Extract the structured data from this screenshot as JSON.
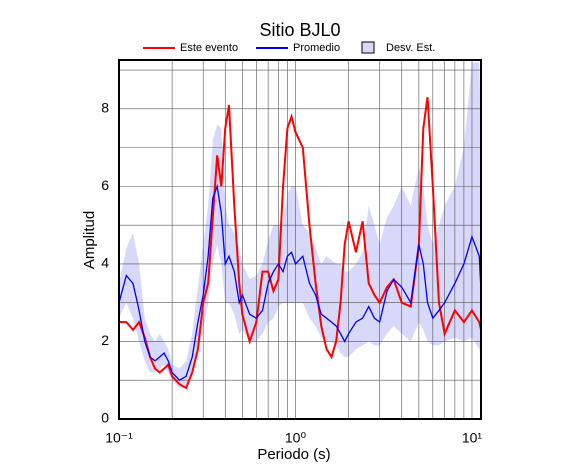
{
  "chart_data": {
    "type": "line",
    "title": "Sitio BJL0",
    "xlabel": "Periodo (s)",
    "ylabel": "Amplitud",
    "xscale": "log",
    "grid": true,
    "xlim": [
      0.1,
      11.25
    ],
    "ylim": [
      0,
      9.26
    ],
    "xticks": [
      {
        "value": 0.1,
        "label": "10⁻¹"
      },
      {
        "value": 1,
        "label": "10⁰"
      },
      {
        "value": 10,
        "label": "10¹"
      }
    ],
    "xgrid": [
      0.2,
      0.3,
      0.4,
      0.5,
      0.6,
      0.7,
      0.8,
      0.9,
      2,
      3,
      4,
      5,
      6,
      7,
      8,
      9
    ],
    "yticks": [
      0,
      2,
      4,
      6,
      8
    ],
    "ygrid": [
      1,
      3,
      5,
      7,
      9
    ],
    "x": [
      0.1,
      0.11,
      0.12,
      0.13,
      0.14,
      0.15,
      0.16,
      0.17,
      0.18,
      0.19,
      0.2,
      0.22,
      0.24,
      0.26,
      0.28,
      0.3,
      0.32,
      0.34,
      0.36,
      0.38,
      0.4,
      0.42,
      0.45,
      0.48,
      0.5,
      0.55,
      0.6,
      0.65,
      0.7,
      0.75,
      0.8,
      0.85,
      0.9,
      0.95,
      1.0,
      1.1,
      1.2,
      1.3,
      1.4,
      1.5,
      1.6,
      1.7,
      1.8,
      1.9,
      2.0,
      2.2,
      2.4,
      2.6,
      2.8,
      3.0,
      3.3,
      3.6,
      4.0,
      4.5,
      5.0,
      5.3,
      5.6,
      6.0,
      6.5,
      7.0,
      8,
      9,
      10,
      11,
      11.25
    ],
    "series": [
      {
        "name": "Desv. Est.",
        "color": "#d8d8fa",
        "upper": [
          3.5,
          4.4,
          4.8,
          4.0,
          2.6,
          2.2,
          2.0,
          2.2,
          2.0,
          1.8,
          1.4,
          1.3,
          1.5,
          2.2,
          3.4,
          4.5,
          5.5,
          7.2,
          7.6,
          7.5,
          5.5,
          5.0,
          4.8,
          4.4,
          4.0,
          3.6,
          3.7,
          4.0,
          4.6,
          5.0,
          5.0,
          5.1,
          5.8,
          6.0,
          6.0,
          5.0,
          4.8,
          4.4,
          4.0,
          4.2,
          4.1,
          4.0,
          4.0,
          3.8,
          3.8,
          4.0,
          4.3,
          5.5,
          5.0,
          4.5,
          5.2,
          5.5,
          6.0,
          5.5,
          6.5,
          6.0,
          5.0,
          4.5,
          5.0,
          5.5,
          6.0,
          7.0,
          9.2,
          9.2,
          7.0
        ],
        "lower": [
          2.6,
          3.0,
          2.6,
          2.0,
          1.5,
          1.2,
          1.2,
          1.3,
          1.4,
          1.2,
          1.0,
          0.8,
          0.8,
          1.2,
          1.7,
          2.3,
          3.0,
          4.0,
          4.5,
          4.0,
          3.0,
          3.0,
          2.7,
          2.2,
          2.3,
          2.0,
          2.0,
          2.2,
          2.5,
          2.6,
          2.9,
          3.0,
          3.0,
          3.0,
          3.0,
          3.0,
          2.6,
          2.4,
          2.1,
          2.0,
          2.0,
          1.9,
          1.7,
          1.6,
          1.6,
          1.8,
          1.9,
          2.0,
          1.9,
          1.9,
          2.2,
          2.4,
          2.2,
          2.0,
          2.5,
          2.3,
          2.0,
          1.9,
          1.9,
          2.0,
          2.1,
          2.0,
          2.1,
          1.8,
          1.5
        ]
      },
      {
        "name": "Este evento",
        "color": "#ff0000",
        "values": [
          2.5,
          2.5,
          2.3,
          2.5,
          2.1,
          1.6,
          1.3,
          1.2,
          1.3,
          1.4,
          1.1,
          0.9,
          0.8,
          1.2,
          1.8,
          3.0,
          3.5,
          5.2,
          6.8,
          6.0,
          7.5,
          8.1,
          5.5,
          3.5,
          2.7,
          2.0,
          2.5,
          3.8,
          3.8,
          3.3,
          3.6,
          6.0,
          7.5,
          7.8,
          7.4,
          7.0,
          5.0,
          3.5,
          2.4,
          1.8,
          1.6,
          2.0,
          3.0,
          4.5,
          5.1,
          4.3,
          5.1,
          3.5,
          3.2,
          3.0,
          3.4,
          3.6,
          3.0,
          2.9,
          4.5,
          7.5,
          8.3,
          6.0,
          3.0,
          2.2,
          2.8,
          2.5,
          2.8,
          2.5,
          2.3
        ]
      },
      {
        "name": "Promedio",
        "color": "#0000ff",
        "values": [
          3.0,
          3.7,
          3.5,
          2.8,
          2.0,
          1.6,
          1.5,
          1.6,
          1.7,
          1.5,
          1.2,
          1.0,
          1.1,
          1.6,
          2.5,
          3.2,
          4.2,
          5.7,
          6.0,
          5.3,
          4.0,
          4.2,
          3.8,
          3.0,
          3.2,
          2.7,
          2.6,
          2.8,
          3.5,
          3.8,
          4.0,
          3.8,
          4.2,
          4.3,
          4.0,
          4.2,
          3.5,
          3.2,
          2.7,
          2.6,
          2.5,
          2.4,
          2.2,
          2.0,
          2.2,
          2.5,
          2.6,
          2.9,
          2.6,
          2.5,
          3.3,
          3.6,
          3.4,
          3.0,
          4.5,
          4.0,
          3.0,
          2.6,
          2.8,
          3.0,
          3.5,
          4.0,
          4.7,
          4.2,
          3.3
        ]
      }
    ]
  }
}
